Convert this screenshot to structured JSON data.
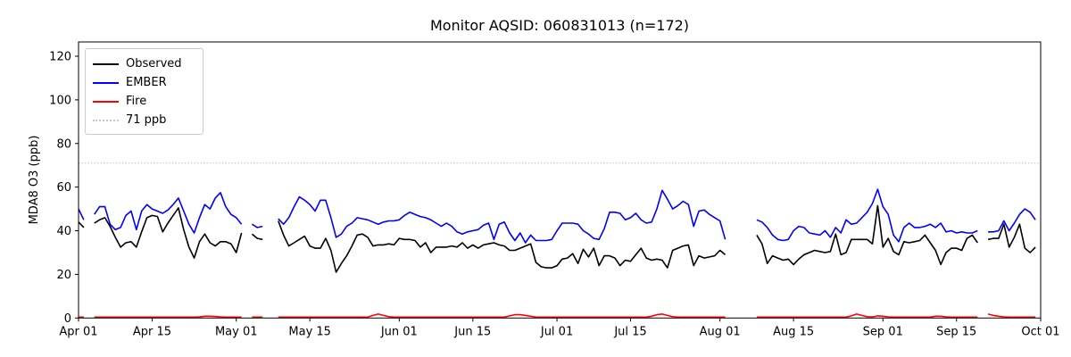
{
  "chart_data": {
    "type": "line",
    "title": "Monitor AQSID: 060831013 (n=172)",
    "xlabel": "",
    "ylabel": "MDA8 O3 (ppb)",
    "y_ticks": [
      0,
      20,
      40,
      60,
      80,
      100,
      120
    ],
    "ylim": [
      0,
      126
    ],
    "grid": false,
    "legend_position": "upper-left",
    "x_ticks": [
      {
        "day": 0,
        "label": "Apr 01"
      },
      {
        "day": 14,
        "label": "Apr 15"
      },
      {
        "day": 30,
        "label": "May 01"
      },
      {
        "day": 44,
        "label": "May 15"
      },
      {
        "day": 61,
        "label": "Jun 01"
      },
      {
        "day": 75,
        "label": "Jun 15"
      },
      {
        "day": 91,
        "label": "Jul 01"
      },
      {
        "day": 105,
        "label": "Jul 15"
      },
      {
        "day": 122,
        "label": "Aug 01"
      },
      {
        "day": 136,
        "label": "Aug 15"
      },
      {
        "day": 153,
        "label": "Sep 01"
      },
      {
        "day": 167,
        "label": "Sep 15"
      },
      {
        "day": 183,
        "label": "Oct 01"
      }
    ],
    "x_range_days": [
      0,
      183
    ],
    "threshold": {
      "value": 71,
      "label": "71 ppb",
      "color": "#c8c8c8",
      "style": "dotted"
    },
    "series": [
      {
        "name": "Observed",
        "color": "#000000",
        "style": "solid",
        "values": [
          44,
          41.5,
          null,
          43.5,
          45,
          46,
          42,
          37,
          32.5,
          34.5,
          35,
          32.5,
          39.5,
          46,
          47,
          46.5,
          39.5,
          43.5,
          47,
          50.5,
          40.5,
          32.5,
          27.5,
          35,
          38.5,
          34.5,
          33,
          35,
          35,
          34,
          30,
          39,
          null,
          38.5,
          36.5,
          36,
          null,
          null,
          44.5,
          38,
          33,
          34.5,
          36,
          37.5,
          33,
          32,
          32,
          36.5,
          31,
          21,
          25,
          28.5,
          33,
          38,
          38.5,
          37,
          33,
          33.5,
          33.5,
          34,
          33.5,
          36.5,
          36,
          36,
          35.5,
          32.5,
          34.5,
          30,
          32.5,
          32.5,
          32.5,
          33,
          32.5,
          34.5,
          32,
          33.5,
          32,
          33.5,
          34,
          34.5,
          33.5,
          33,
          31,
          31,
          32,
          33,
          34,
          25.5,
          23.5,
          23,
          23,
          24,
          27,
          27.5,
          29.5,
          25,
          31.5,
          28,
          32,
          24,
          28.5,
          28.5,
          27.5,
          24,
          26.5,
          26,
          29,
          32,
          27.5,
          26.5,
          27,
          26.5,
          23,
          31,
          32,
          33,
          33.5,
          24,
          28.5,
          27.5,
          28,
          28.5,
          31,
          29,
          null,
          null,
          null,
          null,
          null,
          38,
          34,
          25,
          28.5,
          27.5,
          26.5,
          27,
          24.5,
          27,
          29,
          30,
          31,
          30.5,
          30,
          30.5,
          38.5,
          29,
          30,
          36,
          36,
          36,
          36,
          34,
          51.5,
          32.5,
          36.5,
          30.5,
          29,
          35,
          34.5,
          35,
          35.5,
          38,
          34.5,
          31,
          24.5,
          30,
          32,
          32,
          31,
          36.5,
          38,
          34.5,
          null,
          36,
          36.5,
          36.5,
          43,
          32.5,
          37,
          43,
          32,
          30,
          32.5
        ]
      },
      {
        "name": "EMBER",
        "color": "#0000ff",
        "style": "solid",
        "values": [
          50,
          45,
          null,
          47.5,
          51,
          51,
          43,
          40.5,
          41.5,
          47,
          49,
          40.5,
          49,
          52,
          50,
          49,
          48,
          49.5,
          52,
          55,
          49,
          43,
          39,
          46,
          52,
          50,
          55,
          57.5,
          51,
          47.5,
          46,
          43,
          null,
          43,
          41.5,
          42,
          null,
          null,
          45.5,
          43,
          46,
          51,
          55.5,
          54,
          52,
          49,
          54,
          54,
          46,
          37,
          38.5,
          42,
          43.5,
          46,
          45.5,
          45,
          44,
          43,
          44,
          44.5,
          44.5,
          45,
          47,
          48.5,
          47.5,
          46.5,
          46,
          45,
          43.5,
          42,
          43.5,
          42,
          39.5,
          38.5,
          39.5,
          40,
          40.5,
          42.5,
          43.5,
          36,
          43,
          44,
          39,
          35.5,
          39,
          34.5,
          38,
          35.5,
          35.5,
          35.5,
          36,
          40,
          43.5,
          43.5,
          43.5,
          43,
          40,
          38.5,
          36.5,
          36,
          41,
          48.5,
          48.5,
          48,
          45,
          46,
          48,
          45,
          43.5,
          44,
          50,
          58.5,
          54.5,
          50,
          51.5,
          53.5,
          52,
          42,
          49,
          49.5,
          47.5,
          46,
          44.5,
          36,
          null,
          null,
          null,
          null,
          null,
          45,
          44,
          41.5,
          38,
          36,
          35.5,
          36,
          40,
          42,
          41.5,
          39,
          38.5,
          38,
          40,
          37,
          41.5,
          39,
          45,
          43,
          43.5,
          46,
          48.5,
          52.5,
          59,
          51,
          47.5,
          38,
          35,
          41.5,
          43.5,
          41.5,
          41.5,
          42,
          43,
          41.5,
          43.5,
          39.5,
          40,
          39,
          39.5,
          39,
          39,
          40,
          null,
          39.5,
          39.5,
          40,
          44.5,
          40,
          43.5,
          47.5,
          50,
          48.5,
          45
        ]
      },
      {
        "name": "Fire",
        "color": "#ff0000",
        "style": "solid",
        "values": [
          0.4,
          0.4,
          null,
          0.4,
          0.4,
          0.4,
          0.4,
          0.4,
          0.4,
          0.4,
          0.4,
          0.4,
          0.4,
          0.4,
          0.4,
          0.4,
          0.4,
          0.4,
          0.4,
          0.4,
          0.4,
          0.4,
          0.4,
          0.5,
          0.8,
          0.8,
          0.7,
          0.5,
          0.4,
          0.4,
          0.4,
          0.4,
          null,
          0.4,
          0.4,
          0.4,
          null,
          null,
          0.4,
          0.4,
          0.4,
          0.4,
          0.4,
          0.4,
          0.4,
          0.4,
          0.4,
          0.4,
          0.4,
          0.4,
          0.4,
          0.4,
          0.4,
          0.4,
          0.4,
          0.4,
          1.2,
          1.8,
          1.2,
          0.6,
          0.4,
          0.4,
          0.4,
          0.4,
          0.4,
          0.4,
          0.4,
          0.4,
          0.4,
          0.4,
          0.4,
          0.4,
          0.4,
          0.4,
          0.4,
          0.4,
          0.4,
          0.4,
          0.4,
          0.4,
          0.4,
          0.4,
          1.0,
          1.5,
          1.5,
          1.2,
          0.8,
          0.4,
          0.4,
          0.4,
          0.4,
          0.4,
          0.4,
          0.4,
          0.4,
          0.4,
          0.4,
          0.4,
          0.4,
          0.4,
          0.4,
          0.4,
          0.4,
          0.4,
          0.4,
          0.4,
          0.4,
          0.4,
          0.4,
          0.8,
          1.5,
          1.8,
          1.2,
          0.6,
          0.4,
          0.4,
          0.4,
          0.4,
          0.4,
          0.4,
          0.4,
          0.4,
          0.4,
          0.4,
          null,
          null,
          null,
          null,
          null,
          0.4,
          0.4,
          0.4,
          0.4,
          0.4,
          0.4,
          0.4,
          0.4,
          0.4,
          0.4,
          0.4,
          0.4,
          0.4,
          0.4,
          0.4,
          0.4,
          0.4,
          0.4,
          1.0,
          1.8,
          1.2,
          0.6,
          0.5,
          1.0,
          0.8,
          0.5,
          0.4,
          0.4,
          0.4,
          0.4,
          0.4,
          0.4,
          0.4,
          0.4,
          0.8,
          0.8,
          0.5,
          0.4,
          0.4,
          0.4,
          0.4,
          0.4,
          0.4,
          null,
          1.8,
          1.2,
          0.8,
          0.5,
          0.4,
          0.4,
          0.4,
          0.4,
          0.4,
          0.4
        ]
      }
    ],
    "legend": [
      {
        "label": "Observed",
        "color": "#000000",
        "style": "solid"
      },
      {
        "label": "EMBER",
        "color": "#0000ff",
        "style": "solid"
      },
      {
        "label": "Fire",
        "color": "#ff0000",
        "style": "solid"
      },
      {
        "label": "71 ppb",
        "color": "#c8c8c8",
        "style": "dotted"
      }
    ]
  }
}
